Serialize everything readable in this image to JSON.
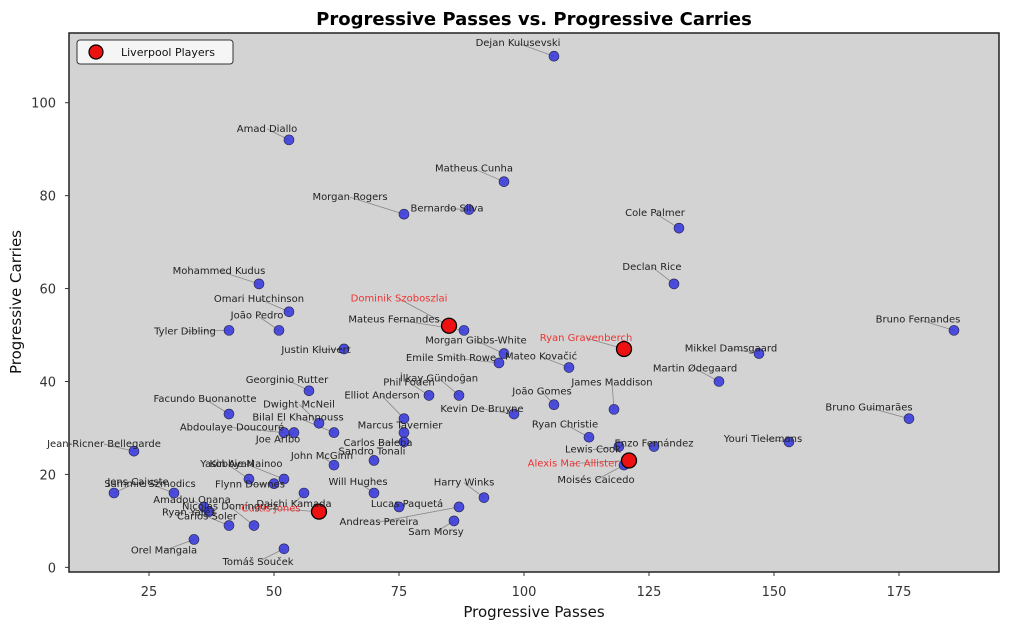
{
  "chart_data": {
    "type": "scatter",
    "title": "Progressive Passes vs. Progressive Carries",
    "xlabel": "Progressive Passes",
    "ylabel": "Progressive Carries",
    "xlim": [
      9,
      195
    ],
    "ylim": [
      -1,
      115
    ],
    "xticks": [
      25,
      50,
      75,
      100,
      125,
      150,
      175
    ],
    "yticks": [
      0,
      20,
      40,
      60,
      80,
      100
    ],
    "grid": false,
    "legend": {
      "position": "top-left",
      "entries": [
        "Liverpool Players"
      ]
    },
    "colors": {
      "background": "#d3d3d3",
      "point": "#3333dd",
      "highlight": "#ee1111",
      "highlight_label": "#ee3333"
    },
    "series": [
      {
        "name": "",
        "points": [
          {
            "x": 106,
            "y": 110,
            "label": "Dejan Kulusevski"
          },
          {
            "x": 53,
            "y": 92,
            "label": "Amad Diallo"
          },
          {
            "x": 96,
            "y": 83,
            "label": "Matheus Cunha"
          },
          {
            "x": 76,
            "y": 76,
            "label": "Morgan Rogers"
          },
          {
            "x": 89,
            "y": 77,
            "label": "Bernardo Silva"
          },
          {
            "x": 131,
            "y": 73,
            "label": "Cole Palmer"
          },
          {
            "x": 130,
            "y": 61,
            "label": "Declan Rice"
          },
          {
            "x": 47,
            "y": 61,
            "label": "Mohammed Kudus"
          },
          {
            "x": 53,
            "y": 55,
            "label": "Omari Hutchinson"
          },
          {
            "x": 51,
            "y": 51,
            "label": "João Pedro"
          },
          {
            "x": 41,
            "y": 51,
            "label": "Tyler Dibling"
          },
          {
            "x": 88,
            "y": 51,
            "label": "Mateus Fernandes"
          },
          {
            "x": 186,
            "y": 51,
            "label": "Bruno Fernandes"
          },
          {
            "x": 64,
            "y": 47,
            "label": "Justin Kluivert"
          },
          {
            "x": 96,
            "y": 46,
            "label": "Morgan Gibbs-White"
          },
          {
            "x": 95,
            "y": 44,
            "label": "Emile Smith Rowe"
          },
          {
            "x": 109,
            "y": 43,
            "label": "Mateo Kovačić"
          },
          {
            "x": 147,
            "y": 46,
            "label": "Mikkel Damsgaard"
          },
          {
            "x": 139,
            "y": 40,
            "label": "Martin Ødegaard"
          },
          {
            "x": 57,
            "y": 38,
            "label": "Georginio Rutter"
          },
          {
            "x": 81,
            "y": 37,
            "label": "Phil Foden"
          },
          {
            "x": 87,
            "y": 37,
            "label": "İlkay Gündoğan"
          },
          {
            "x": 76,
            "y": 32,
            "label": "Elliot Anderson"
          },
          {
            "x": 106,
            "y": 35,
            "label": "João Gomes"
          },
          {
            "x": 98,
            "y": 33,
            "label": "Kevin De Bruyne"
          },
          {
            "x": 118,
            "y": 34,
            "label": "James Maddison"
          },
          {
            "x": 41,
            "y": 33,
            "label": "Facundo Buonanotte"
          },
          {
            "x": 59,
            "y": 31,
            "label": "Dwight McNeil"
          },
          {
            "x": 62,
            "y": 29,
            "label": "Bilal El Khannouss"
          },
          {
            "x": 52,
            "y": 29,
            "label": "Abdoulaye Doucouré"
          },
          {
            "x": 54,
            "y": 29,
            "label": "Joe Aribo"
          },
          {
            "x": 76,
            "y": 29,
            "label": "Marcus Tavernier"
          },
          {
            "x": 76,
            "y": 27,
            "label": "Carlos Baleba"
          },
          {
            "x": 177,
            "y": 32,
            "label": "Bruno Guimarães"
          },
          {
            "x": 113,
            "y": 28,
            "label": "Ryan Christie"
          },
          {
            "x": 153,
            "y": 27,
            "label": "Youri Tielemans"
          },
          {
            "x": 119,
            "y": 26,
            "label": "Lewis Cook"
          },
          {
            "x": 126,
            "y": 26,
            "label": "Enzo Fernández"
          },
          {
            "x": 120,
            "y": 22,
            "label": "Moisés Caicedo"
          },
          {
            "x": 22,
            "y": 25,
            "label": "Jean-Ricner Bellegarde"
          },
          {
            "x": 70,
            "y": 23,
            "label": "Sandro Tonali"
          },
          {
            "x": 62,
            "y": 22,
            "label": "John McGinn"
          },
          {
            "x": 52,
            "y": 19,
            "label": "Kobbie Mainoo"
          },
          {
            "x": 45,
            "y": 19,
            "label": "Yasin Ayari"
          },
          {
            "x": 50,
            "y": 18,
            "label": "Flynn Downes"
          },
          {
            "x": 18,
            "y": 16,
            "label": "Jens Cajuste"
          },
          {
            "x": 30,
            "y": 16,
            "label": "Sammie Szmodics"
          },
          {
            "x": 56,
            "y": 16,
            "label": "Daichi Kamada"
          },
          {
            "x": 70,
            "y": 16,
            "label": "Will Hughes"
          },
          {
            "x": 92,
            "y": 15,
            "label": "Harry Winks"
          },
          {
            "x": 75,
            "y": 13,
            "label": "Lucas Paquetá"
          },
          {
            "x": 87,
            "y": 13,
            "label": "Andreas Pereira"
          },
          {
            "x": 36,
            "y": 13,
            "label": "Amadou Onana"
          },
          {
            "x": 37,
            "y": 12,
            "label": "Ryan Yates"
          },
          {
            "x": 41,
            "y": 9,
            "label": "Carlos Soler"
          },
          {
            "x": 46,
            "y": 9,
            "label": "Nicolás Domínguez"
          },
          {
            "x": 86,
            "y": 10,
            "label": "Sam Morsy"
          },
          {
            "x": 34,
            "y": 6,
            "label": "Orel Mangala"
          },
          {
            "x": 52,
            "y": 4,
            "label": "Tomáš Souček"
          }
        ]
      },
      {
        "name": "Liverpool Players",
        "points": [
          {
            "x": 85,
            "y": 52,
            "label": "Dominik Szoboszlai"
          },
          {
            "x": 120,
            "y": 47,
            "label": "Ryan Gravenberch"
          },
          {
            "x": 121,
            "y": 23,
            "label": "Alexis Mac Allister"
          },
          {
            "x": 59,
            "y": 12,
            "label": "Curtis Jones"
          }
        ]
      }
    ]
  }
}
